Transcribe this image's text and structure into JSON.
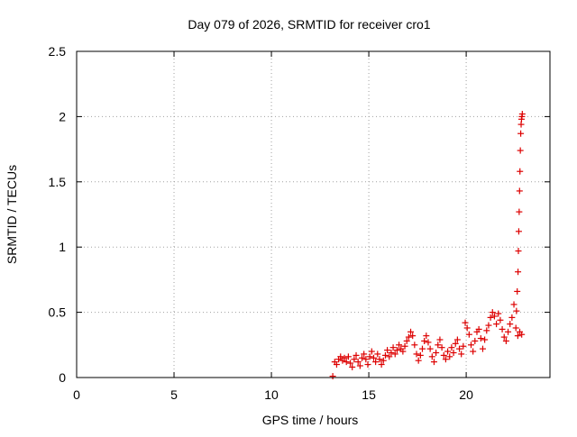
{
  "chart_data": {
    "type": "scatter",
    "title": "Day 079 of 2026, SRMTID for receiver cro1",
    "xlabel": "GPS time / hours",
    "ylabel": "SRMTID / TECUs",
    "xlim": [
      0,
      24.3
    ],
    "ylim": [
      0,
      2.5
    ],
    "xticks": [
      0,
      5,
      10,
      15,
      20
    ],
    "xtick_labels": [
      "0",
      "5",
      "10",
      "15",
      "20"
    ],
    "yticks": [
      0,
      0.5,
      1,
      1.5,
      2,
      2.5
    ],
    "ytick_labels": [
      "0",
      "0.5",
      "1",
      "1.5",
      "2",
      "2.5"
    ],
    "grid": true,
    "marker": "plus",
    "colors": {
      "series": "#dd0000",
      "grid": "#a0a0a0",
      "axis": "#000000"
    },
    "series": [
      {
        "x": [
          13.15,
          13.25,
          13.35,
          13.45,
          13.55,
          13.65,
          13.75,
          13.85,
          13.95,
          14.05,
          14.15,
          14.25,
          14.35,
          14.45,
          14.55,
          14.65,
          14.75,
          14.85,
          14.95,
          15.05,
          15.15,
          15.25,
          15.35,
          15.45,
          15.55,
          15.65,
          15.75,
          15.85,
          15.95,
          16.05,
          16.15,
          16.25,
          16.35,
          16.45,
          16.55,
          16.65,
          16.75,
          16.85,
          16.95,
          17.05,
          17.15,
          17.25,
          17.35,
          17.45,
          17.55,
          17.65,
          17.75,
          17.85,
          17.95,
          18.05,
          18.15,
          18.25,
          18.35,
          18.45,
          18.55,
          18.65,
          18.75,
          18.85,
          18.95,
          19.05,
          19.15,
          19.25,
          19.35,
          19.45,
          19.55,
          19.65,
          19.75,
          19.85,
          19.95,
          20.05,
          20.15,
          20.25,
          20.35,
          20.45,
          20.55,
          20.65,
          20.75,
          20.85,
          20.95,
          21.05,
          21.15,
          21.25,
          21.35,
          21.45,
          21.55,
          21.65,
          21.75,
          21.85,
          21.95,
          22.05,
          22.15,
          22.25,
          22.35,
          22.45,
          22.55,
          22.65,
          22.75,
          22.85
        ],
        "y": [
          0.01,
          0.12,
          0.1,
          0.14,
          0.16,
          0.13,
          0.15,
          0.12,
          0.16,
          0.11,
          0.08,
          0.14,
          0.17,
          0.12,
          0.09,
          0.15,
          0.18,
          0.14,
          0.1,
          0.16,
          0.2,
          0.15,
          0.12,
          0.18,
          0.14,
          0.1,
          0.13,
          0.17,
          0.21,
          0.16,
          0.19,
          0.23,
          0.18,
          0.21,
          0.25,
          0.22,
          0.2,
          0.24,
          0.28,
          0.31,
          0.35,
          0.32,
          0.25,
          0.18,
          0.13,
          0.17,
          0.22,
          0.28,
          0.32,
          0.27,
          0.22,
          0.16,
          0.12,
          0.19,
          0.25,
          0.29,
          0.23,
          0.17,
          0.14,
          0.2,
          0.16,
          0.23,
          0.19,
          0.26,
          0.29,
          0.22,
          0.18,
          0.24,
          0.42,
          0.38,
          0.33,
          0.25,
          0.2,
          0.28,
          0.35,
          0.37,
          0.3,
          0.22,
          0.29,
          0.36,
          0.4,
          0.46,
          0.5,
          0.47,
          0.41,
          0.49,
          0.44,
          0.37,
          0.31,
          0.28,
          0.35,
          0.41,
          0.46,
          0.56,
          0.38,
          0.32,
          0.35,
          0.33
        ]
      },
      {
        "x": [
          22.58,
          22.62,
          22.66,
          22.68,
          22.7,
          22.72,
          22.74,
          22.76,
          22.78,
          22.8,
          22.82,
          22.84,
          22.86,
          22.88
        ],
        "y": [
          0.51,
          0.66,
          0.81,
          0.97,
          1.12,
          1.27,
          1.43,
          1.58,
          1.74,
          1.87,
          1.94,
          1.98,
          2.0,
          2.02
        ]
      }
    ]
  }
}
